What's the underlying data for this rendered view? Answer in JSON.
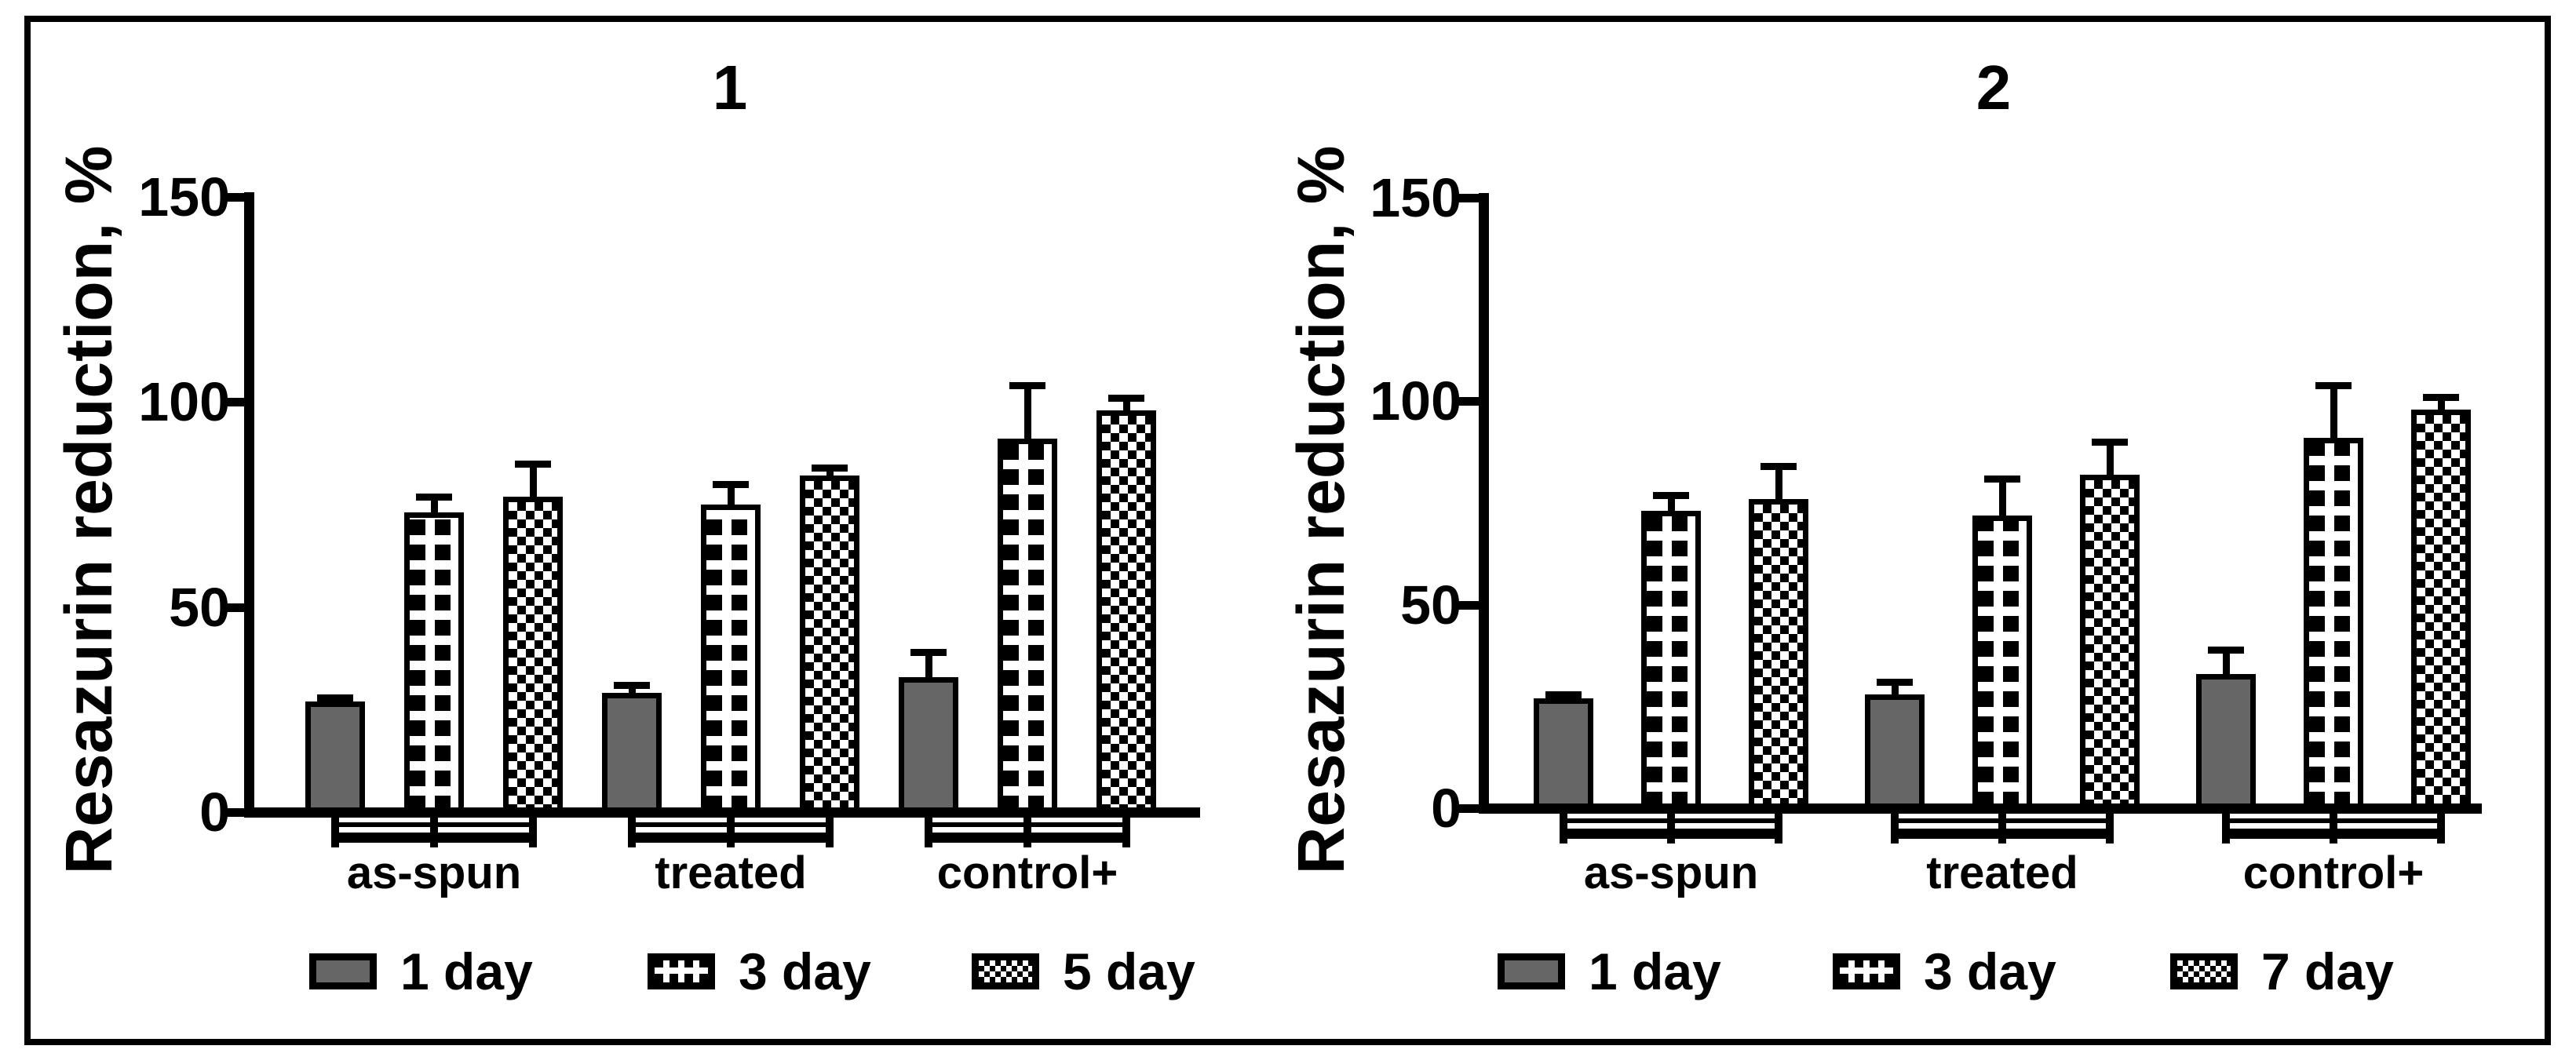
{
  "figure": {
    "background": "#ffffff",
    "border_color": "#000000",
    "text_color": "#000000",
    "solid_bar_color": "#666666",
    "pattern_foreground": "#000000",
    "pattern_background": "#ffffff"
  },
  "chart_data": [
    {
      "type": "bar",
      "title": "1",
      "ylabel": "Resazurin reduction, %",
      "xlabel": "",
      "ylim": [
        0,
        150
      ],
      "yticks": [
        0,
        50,
        100,
        150
      ],
      "grid": false,
      "legend_position": "bottom",
      "categories": [
        "as-spun",
        "treated",
        "control+"
      ],
      "series": [
        {
          "name": "1 day",
          "pattern": "solid-gray",
          "values": [
            27,
            29,
            33
          ],
          "errors": [
            1,
            2,
            6
          ]
        },
        {
          "name": "3 day",
          "pattern": "grid",
          "values": [
            73,
            75,
            91
          ],
          "errors": [
            4,
            5,
            13
          ]
        },
        {
          "name": "5 day",
          "pattern": "checker",
          "values": [
            77,
            82,
            98
          ],
          "errors": [
            8,
            2,
            3
          ]
        }
      ]
    },
    {
      "type": "bar",
      "title": "2",
      "ylabel": "Resazurin reduction, %",
      "xlabel": "",
      "ylim": [
        0,
        150
      ],
      "yticks": [
        0,
        50,
        100,
        150
      ],
      "grid": false,
      "legend_position": "bottom",
      "categories": [
        "as-spun",
        "treated",
        "control+"
      ],
      "series": [
        {
          "name": "1 day",
          "pattern": "solid-gray",
          "values": [
            27,
            28,
            33
          ],
          "errors": [
            1,
            3,
            6
          ]
        },
        {
          "name": "3 day",
          "pattern": "grid",
          "values": [
            73,
            72,
            91
          ],
          "errors": [
            4,
            9,
            13
          ]
        },
        {
          "name": "7 day",
          "pattern": "checker",
          "values": [
            76,
            82,
            98
          ],
          "errors": [
            8,
            8,
            3
          ]
        }
      ]
    }
  ]
}
